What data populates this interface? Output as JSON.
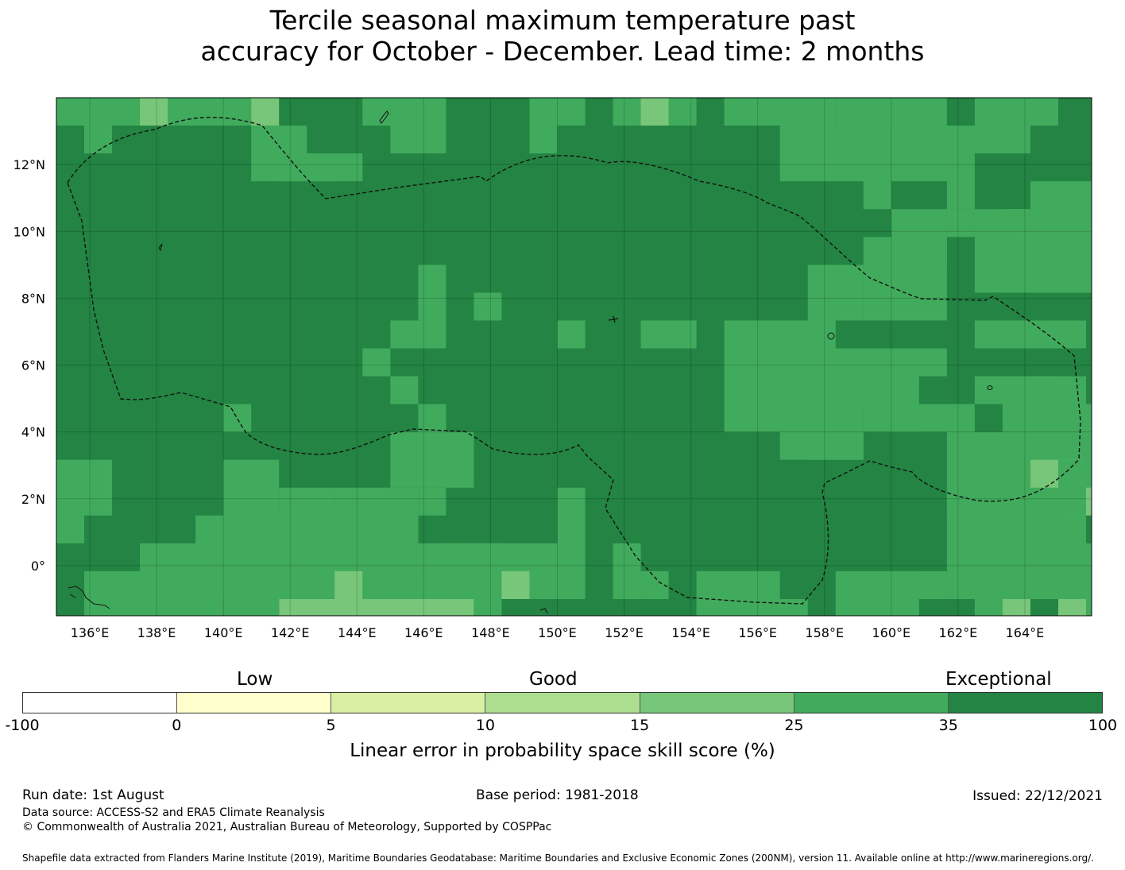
{
  "title": {
    "line1": "Tercile seasonal maximum temperature past",
    "line2": "accuracy for October - December. Lead time: 2 months"
  },
  "map": {
    "lon_labels": [
      "136°E",
      "138°E",
      "140°E",
      "142°E",
      "144°E",
      "146°E",
      "148°E",
      "150°E",
      "152°E",
      "154°E",
      "156°E",
      "158°E",
      "160°E",
      "162°E",
      "164°E"
    ],
    "lat_labels": [
      "12°N",
      "10°N",
      "8°N",
      "6°N",
      "4°N",
      "2°N",
      "0°"
    ],
    "lon_range": [
      135.0,
      166.0
    ],
    "lat_range": [
      -1.5,
      14.0
    ],
    "grid_lines": true,
    "category_colors": [
      "#ffffff",
      "#ffffcc",
      "#d9f0a3",
      "#addd8e",
      "#78c679",
      "#41ab5d",
      "#238443"
    ],
    "dominant_category": 6,
    "boundary_style": "dashed"
  },
  "colorbar": {
    "category_labels": [
      "Low",
      "Good",
      "Exceptional"
    ],
    "ticks": [
      "-100",
      "0",
      "5",
      "10",
      "15",
      "25",
      "35",
      "100"
    ],
    "colors": [
      "#ffffff",
      "#ffffcc",
      "#d9f0a3",
      "#addd8e",
      "#78c679",
      "#41ab5d",
      "#238443"
    ],
    "title": "Linear error in probability space skill score (%)"
  },
  "footer": {
    "run_date": "Run date: 1st August",
    "base_period": "Base period: 1981-2018",
    "issued": "Issued: 22/12/2021",
    "data_source": "Data source: ACCESS-S2 and ERA5 Climate Reanalysis",
    "copyright": "© Commonwealth of Australia 2021, Australian Bureau of Meteorology, Supported by COSPPac",
    "shapefile": "Shapefile data extracted from Flanders Marine Institute (2019), Maritime Boundaries Geodatabase: Maritime Boundaries and Exclusive Economic Zones (200NM), version 11. Available online at http://www.marineregions.org/."
  }
}
